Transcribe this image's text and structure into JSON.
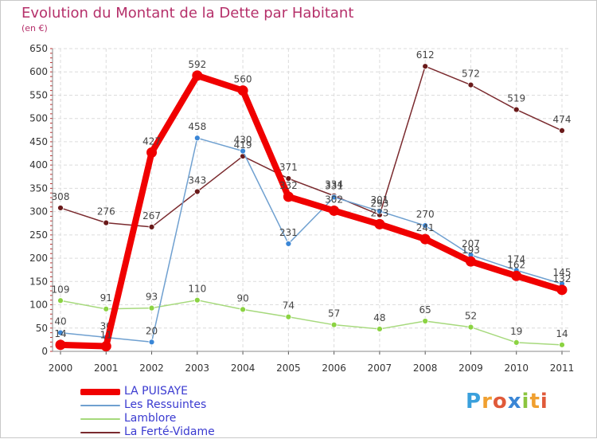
{
  "chart_data": {
    "type": "line",
    "title": "Evolution du Montant de la Dette par Habitant",
    "unit": "(en €)",
    "xlabel": "",
    "ylabel": "",
    "categories": [
      "2000",
      "2001",
      "2002",
      "2003",
      "2004",
      "2005",
      "2006",
      "2007",
      "2008",
      "2009",
      "2010",
      "2011"
    ],
    "ylim": [
      0,
      650
    ],
    "yticks": [
      0,
      50,
      100,
      150,
      200,
      250,
      300,
      350,
      400,
      450,
      500,
      550,
      600,
      650
    ],
    "grid": true,
    "legend_position": "bottom-left",
    "series": [
      {
        "name": "La Ferté-Vidame",
        "color": "#7a2a2e",
        "marker": "#6a1a1a",
        "values": [
          308,
          276,
          267,
          343,
          419,
          371,
          334,
          293,
          612,
          572,
          519,
          474
        ]
      },
      {
        "name": "Lamblore",
        "color": "#a6d97c",
        "marker": "#8bd342",
        "values": [
          109,
          91,
          93,
          110,
          90,
          74,
          57,
          48,
          65,
          52,
          19,
          14
        ]
      },
      {
        "name": "Les Ressuintes",
        "color": "#6fa0d0",
        "marker": "#3a86d6",
        "values": [
          40,
          30,
          20,
          458,
          430,
          231,
          331,
          301,
          270,
          207,
          174,
          145
        ]
      },
      {
        "name": "LA PUISAYE",
        "color": "#f00000",
        "marker": "#f00000",
        "values": [
          14,
          11,
          427,
          592,
          560,
          332,
          302,
          273,
          241,
          193,
          162,
          132
        ]
      }
    ],
    "legend": [
      {
        "name": "LA PUISAYE",
        "color": "#f00000"
      },
      {
        "name": "Les Ressuintes",
        "color": "#6fa0d0"
      },
      {
        "name": "Lamblore",
        "color": "#a6d97c"
      },
      {
        "name": "La Ferté-Vidame",
        "color": "#7a2a2e"
      }
    ]
  },
  "brand": {
    "name": "Proxiti",
    "letters": [
      "P",
      "r",
      "o",
      "x",
      "i",
      "t",
      "i"
    ],
    "colors": [
      "#3aa0dc",
      "#f0a030",
      "#e05a3a",
      "#3a86d6",
      "#8bc53f",
      "#f0a030",
      "#e05a3a"
    ]
  }
}
